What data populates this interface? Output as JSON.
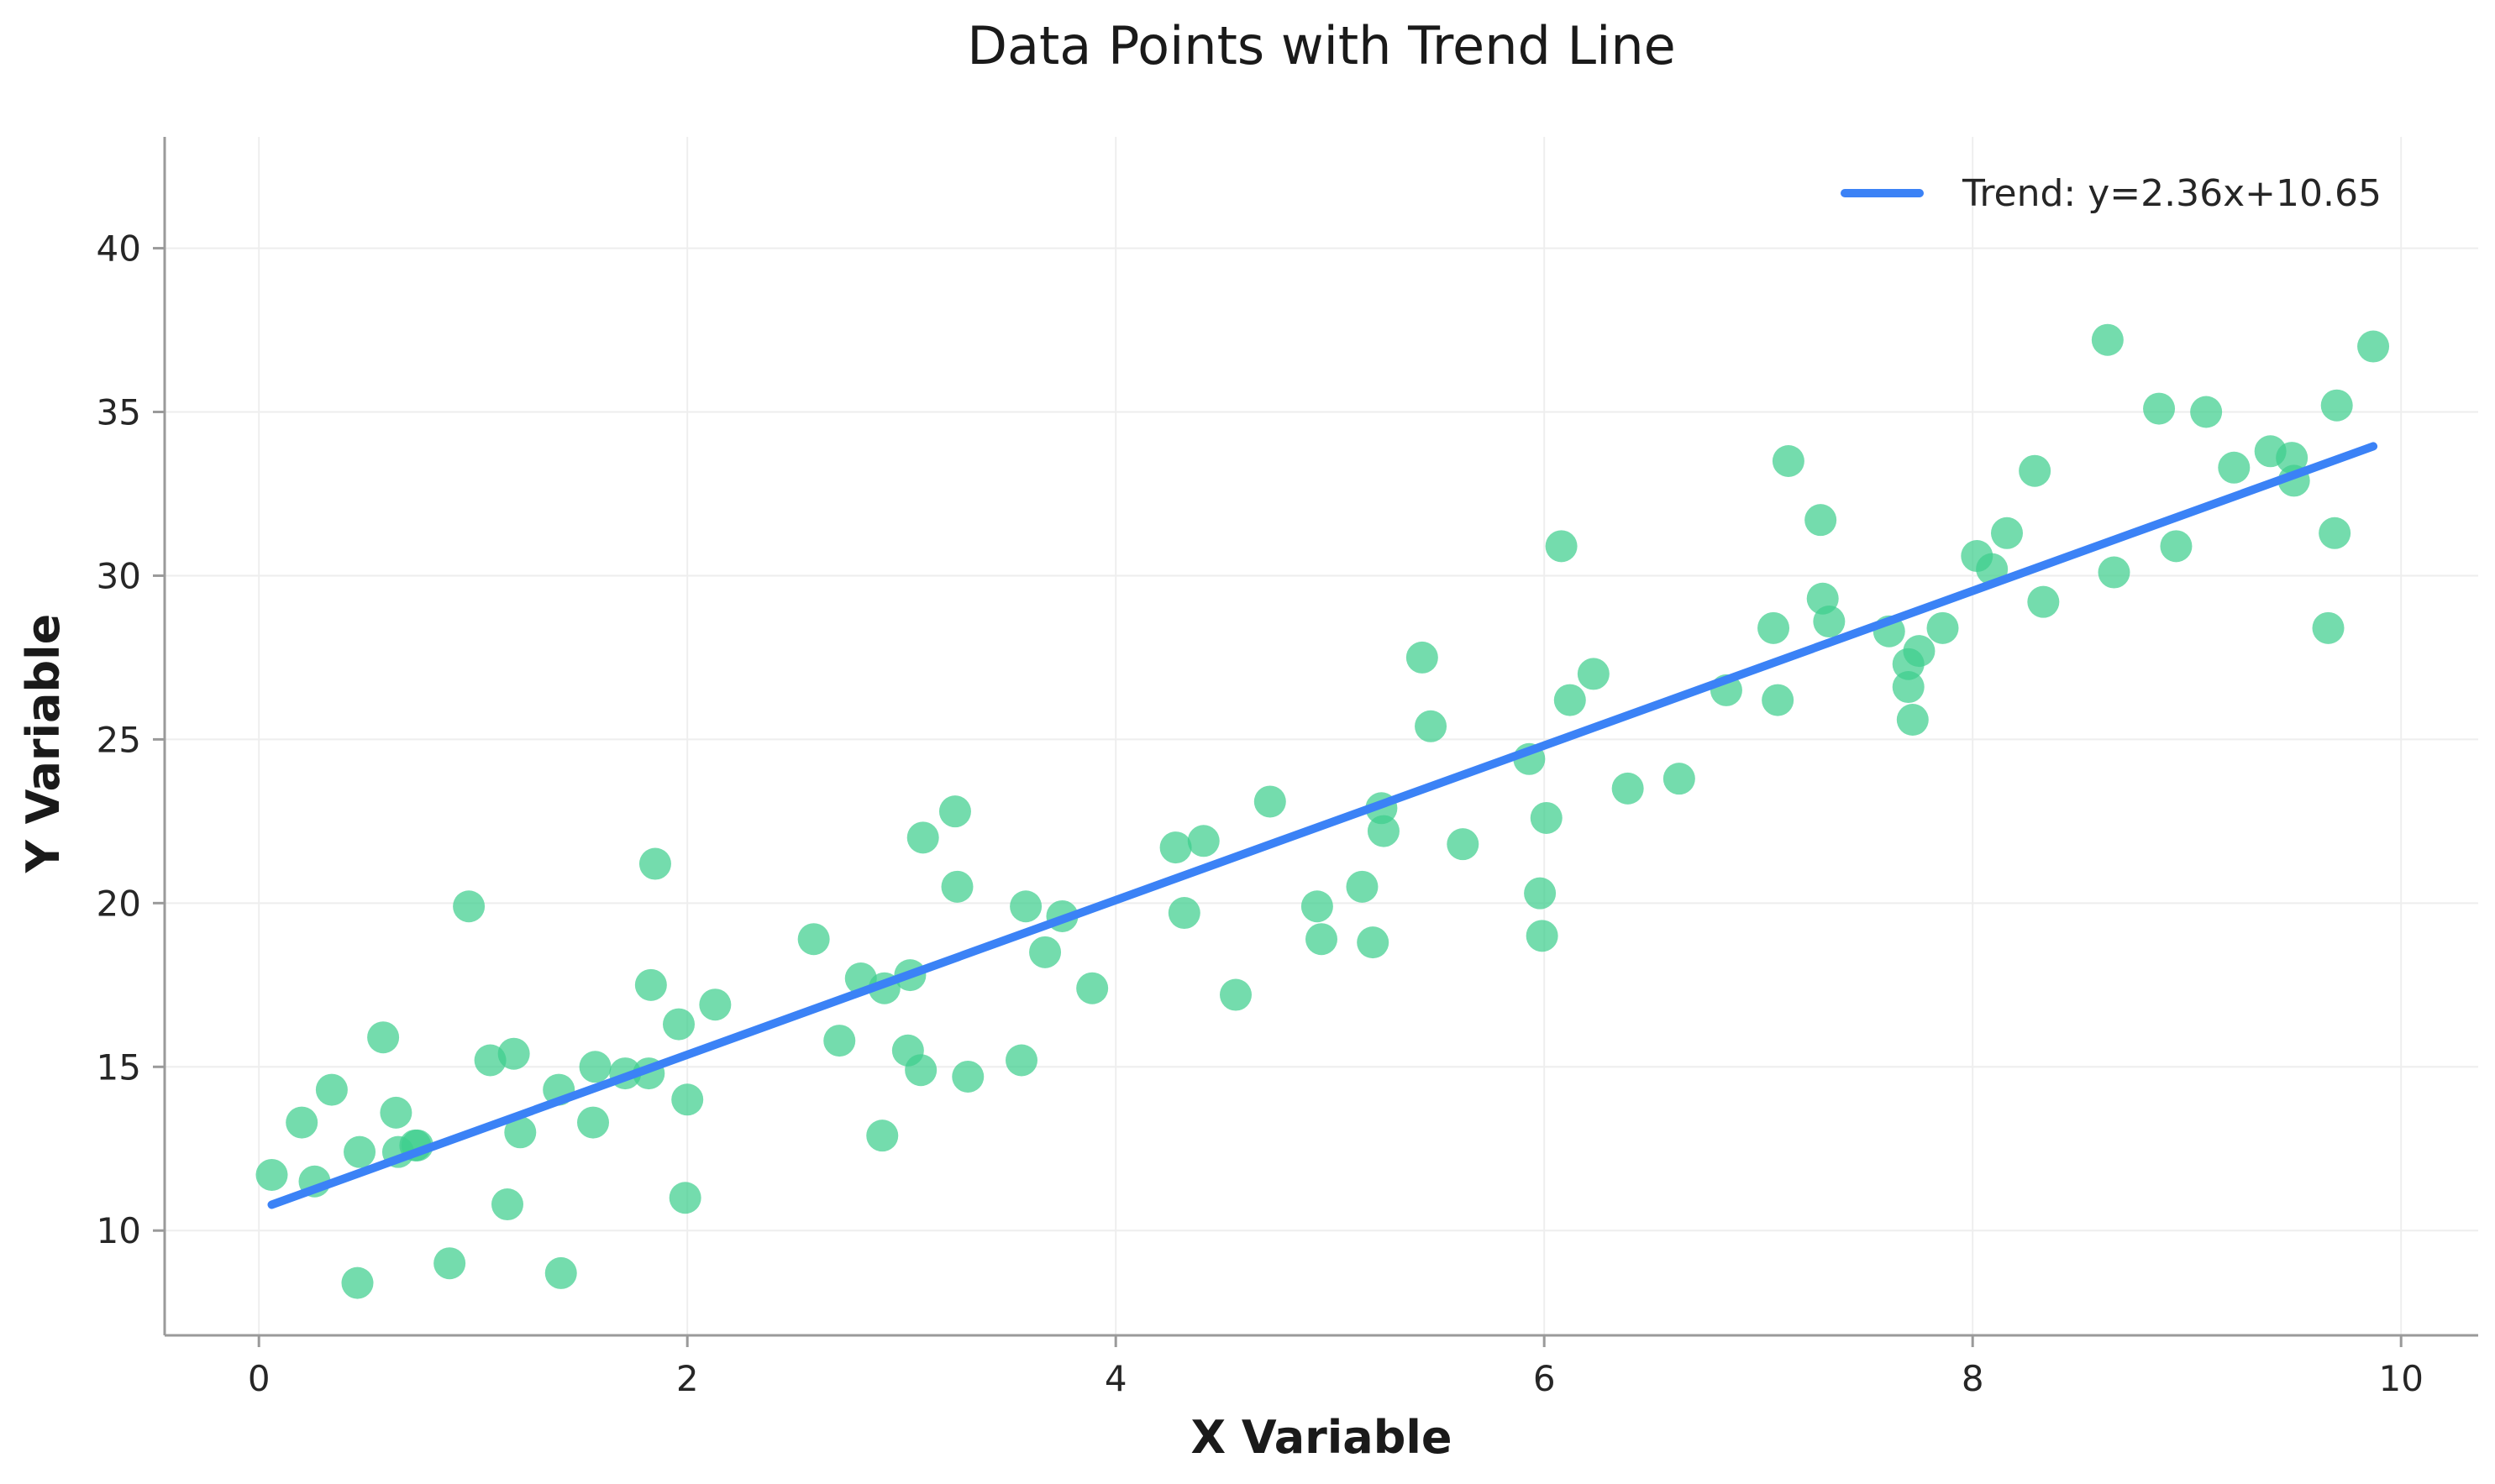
{
  "chart_data": {
    "type": "scatter",
    "title": "Data Points with Trend Line",
    "xlabel": "X Variable",
    "ylabel": "Y Variable",
    "xlim": [
      -0.44,
      10.36
    ],
    "ylim": [
      6.8,
      43.4
    ],
    "xticks": [
      0,
      2,
      4,
      6,
      8,
      10
    ],
    "yticks": [
      10,
      15,
      20,
      25,
      30,
      35,
      40
    ],
    "grid": true,
    "legend_position": "top-right",
    "colors": {
      "points": "#3ecf8e",
      "trend": "#3b82f6",
      "axis": "#9a9a9a",
      "grid": "#eeeeee"
    },
    "series": [
      {
        "type": "scatter",
        "points": [
          [
            0.06,
            11.7
          ],
          [
            0.2,
            13.3
          ],
          [
            0.26,
            11.5
          ],
          [
            0.34,
            14.3
          ],
          [
            0.46,
            8.4
          ],
          [
            0.47,
            12.4
          ],
          [
            0.58,
            15.9
          ],
          [
            0.64,
            13.6
          ],
          [
            0.65,
            12.4
          ],
          [
            0.73,
            12.6
          ],
          [
            0.74,
            12.6
          ],
          [
            0.89,
            9.0
          ],
          [
            0.98,
            19.9
          ],
          [
            1.08,
            15.2
          ],
          [
            1.16,
            10.8
          ],
          [
            1.19,
            15.4
          ],
          [
            1.22,
            13.0
          ],
          [
            1.4,
            14.3
          ],
          [
            1.41,
            8.7
          ],
          [
            1.56,
            13.3
          ],
          [
            1.57,
            15.0
          ],
          [
            1.71,
            14.8
          ],
          [
            1.82,
            14.8
          ],
          [
            1.83,
            17.5
          ],
          [
            1.85,
            21.2
          ],
          [
            1.96,
            16.3
          ],
          [
            1.99,
            11.0
          ],
          [
            2.0,
            14.0
          ],
          [
            2.13,
            16.9
          ],
          [
            2.59,
            18.9
          ],
          [
            2.71,
            15.8
          ],
          [
            2.81,
            17.7
          ],
          [
            2.91,
            12.9
          ],
          [
            2.92,
            17.4
          ],
          [
            3.03,
            15.5
          ],
          [
            3.04,
            17.8
          ],
          [
            3.09,
            14.9
          ],
          [
            3.1,
            22.0
          ],
          [
            3.25,
            22.8
          ],
          [
            3.26,
            20.5
          ],
          [
            3.31,
            14.7
          ],
          [
            3.56,
            15.2
          ],
          [
            3.58,
            19.9
          ],
          [
            3.67,
            18.5
          ],
          [
            3.75,
            19.6
          ],
          [
            3.89,
            17.4
          ],
          [
            4.28,
            21.7
          ],
          [
            4.32,
            19.7
          ],
          [
            4.41,
            21.9
          ],
          [
            4.56,
            17.2
          ],
          [
            4.72,
            23.1
          ],
          [
            4.94,
            19.9
          ],
          [
            4.96,
            18.9
          ],
          [
            5.15,
            20.5
          ],
          [
            5.2,
            18.8
          ],
          [
            5.24,
            22.9
          ],
          [
            5.25,
            22.2
          ],
          [
            5.43,
            27.5
          ],
          [
            5.47,
            25.4
          ],
          [
            5.62,
            21.8
          ],
          [
            5.93,
            24.4
          ],
          [
            5.98,
            20.3
          ],
          [
            5.99,
            19.0
          ],
          [
            6.01,
            22.6
          ],
          [
            6.08,
            30.9
          ],
          [
            6.12,
            26.2
          ],
          [
            6.23,
            27.0
          ],
          [
            6.39,
            23.5
          ],
          [
            6.63,
            23.8
          ],
          [
            6.85,
            26.5
          ],
          [
            7.07,
            28.4
          ],
          [
            7.09,
            26.2
          ],
          [
            7.14,
            33.5
          ],
          [
            7.29,
            31.7
          ],
          [
            7.3,
            29.3
          ],
          [
            7.33,
            28.6
          ],
          [
            7.61,
            28.3
          ],
          [
            7.7,
            27.3
          ],
          [
            7.7,
            26.6
          ],
          [
            7.72,
            25.6
          ],
          [
            7.75,
            27.7
          ],
          [
            7.86,
            28.4
          ],
          [
            8.02,
            30.6
          ],
          [
            8.09,
            30.2
          ],
          [
            8.16,
            31.3
          ],
          [
            8.29,
            33.2
          ],
          [
            8.33,
            29.2
          ],
          [
            8.63,
            37.2
          ],
          [
            8.66,
            30.1
          ],
          [
            8.87,
            35.1
          ],
          [
            8.95,
            30.9
          ],
          [
            9.09,
            35.0
          ],
          [
            9.22,
            33.3
          ],
          [
            9.39,
            33.8
          ],
          [
            9.49,
            33.6
          ],
          [
            9.5,
            32.9
          ],
          [
            9.66,
            28.4
          ],
          [
            9.69,
            31.3
          ],
          [
            9.7,
            35.2
          ],
          [
            9.87,
            37.0
          ]
        ]
      },
      {
        "type": "line",
        "name": "Trend: y=2.36x+10.65",
        "x": [
          0.06,
          9.87
        ],
        "y": [
          10.79,
          33.95
        ]
      }
    ]
  }
}
